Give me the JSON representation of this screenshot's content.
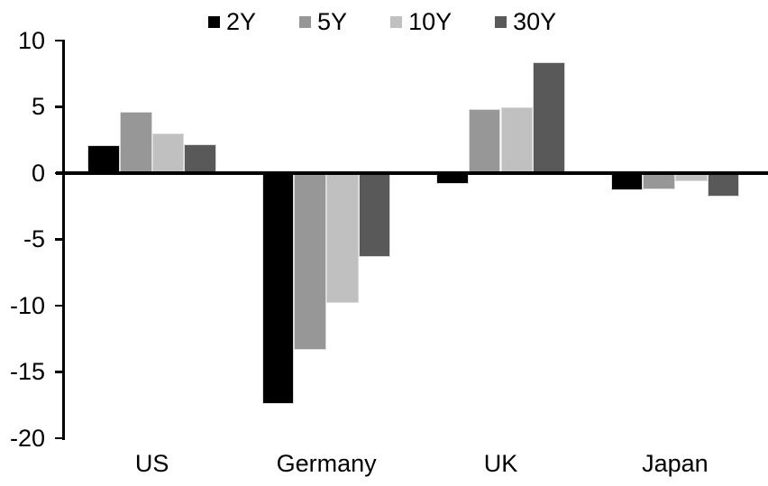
{
  "chart_data": {
    "type": "bar",
    "title": "",
    "categories": [
      "US",
      "Germany",
      "UK",
      "Japan"
    ],
    "series": [
      {
        "name": "2Y",
        "color": "#000000",
        "values": [
          2.1,
          -17.4,
          -0.8,
          -1.3
        ]
      },
      {
        "name": "5Y",
        "color": "#979797",
        "values": [
          4.6,
          -13.3,
          4.8,
          -1.2
        ]
      },
      {
        "name": "10Y",
        "color": "#c0c0c0",
        "values": [
          3.0,
          -9.8,
          5.0,
          -0.6
        ]
      },
      {
        "name": "30Y",
        "color": "#595959",
        "values": [
          2.2,
          -6.3,
          8.4,
          -1.8
        ]
      }
    ],
    "xlabel": "",
    "ylabel": "",
    "ylim": [
      -20,
      10
    ],
    "y_ticks": [
      10,
      5,
      0,
      -5,
      -10,
      -15,
      -20
    ],
    "grid": false,
    "legend_position": "top",
    "axis_color": "#000000",
    "bar_outline_color": "#dbdbdb",
    "background_color": "#ffffff"
  }
}
